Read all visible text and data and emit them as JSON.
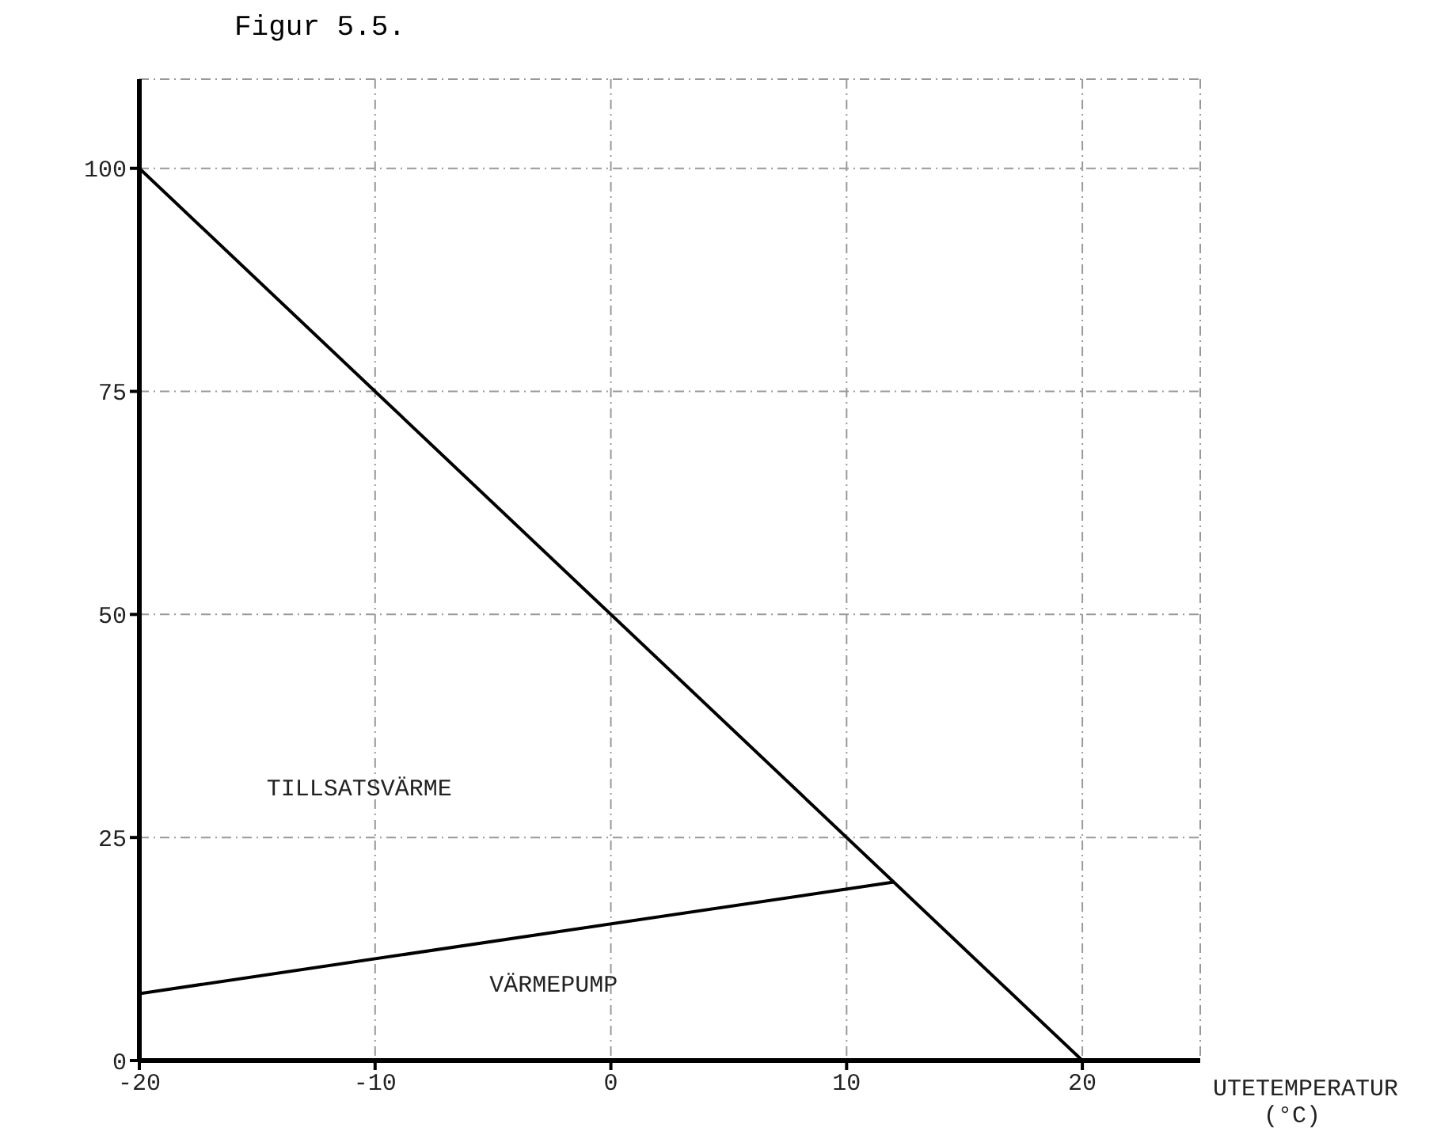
{
  "chart_data": {
    "type": "line",
    "title": "Figur 5.5.",
    "xlabel": "UTETEMPERATUR (°C)",
    "xlim": [
      -20,
      25
    ],
    "ylim": [
      0,
      110
    ],
    "xticks": [
      -20,
      -10,
      0,
      10,
      20
    ],
    "yticks": [
      0,
      25,
      50,
      75,
      100
    ],
    "grid": true,
    "marker": "none",
    "line_style": "solid",
    "series": [
      {
        "color": "#000000",
        "x": [
          -20,
          20
        ],
        "values": [
          100,
          0
        ]
      },
      {
        "color": "#000000",
        "x": [
          -20,
          12
        ],
        "values": [
          7.5,
          20
        ]
      }
    ],
    "annotations": [
      "TILLSATSVÄRME",
      "VÄRMEPUMP"
    ]
  }
}
